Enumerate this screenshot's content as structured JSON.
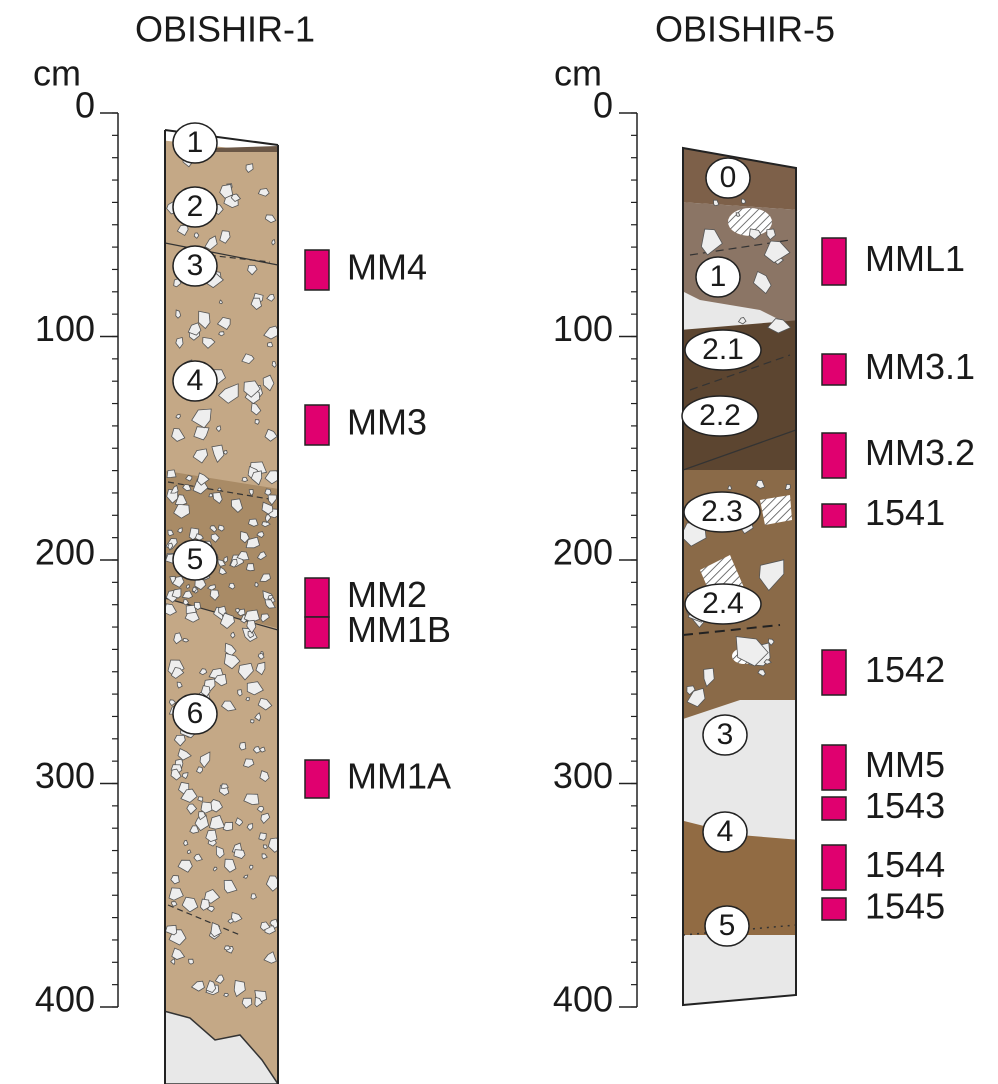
{
  "columns": [
    {
      "title": "OBISHIR-1",
      "unit": "cm",
      "ticks": [
        0,
        100,
        200,
        300,
        400
      ],
      "layers": [
        "1",
        "2",
        "3",
        "4",
        "5",
        "6"
      ],
      "samples": [
        "MM4",
        "MM3",
        "MM2",
        "MM1B",
        "MM1A"
      ]
    },
    {
      "title": "OBISHIR-5",
      "unit": "cm",
      "ticks": [
        0,
        100,
        200,
        300,
        400
      ],
      "layers": [
        "0",
        "1",
        "2.1",
        "2.2",
        "2.3",
        "2.4",
        "3",
        "4",
        "5"
      ],
      "samples": [
        "MML1",
        "MM3.1",
        "MM3.2",
        "1541",
        "1542",
        "MM5",
        "1543",
        "1544",
        "1545"
      ]
    }
  ]
}
